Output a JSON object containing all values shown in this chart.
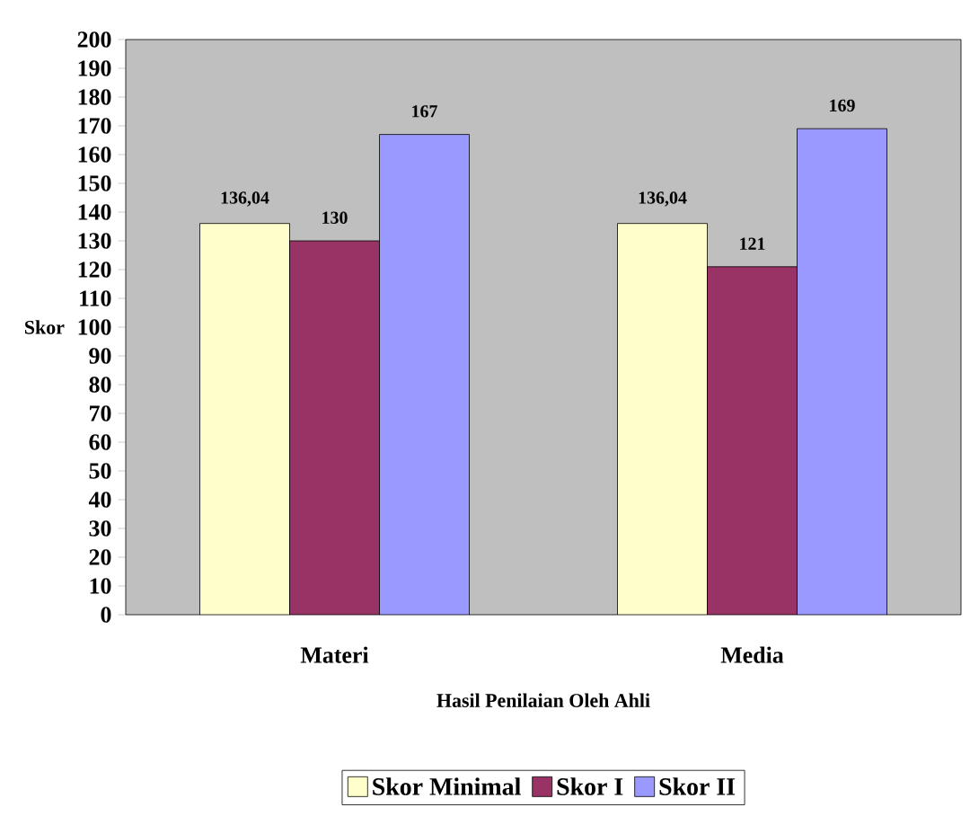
{
  "chart_data": {
    "type": "bar",
    "xlabel": "Hasil Penilaian Oleh Ahli",
    "ylabel": "Skor",
    "categories": [
      "Materi",
      "Media"
    ],
    "series": [
      {
        "name": "Skor Minimal",
        "color": "#ffffcc",
        "values": [
          136.04,
          136.04
        ],
        "value_labels": [
          "136,04",
          "136,04"
        ]
      },
      {
        "name": "Skor I",
        "color": "#993366",
        "values": [
          130,
          121
        ],
        "value_labels": [
          "130",
          "121"
        ]
      },
      {
        "name": "Skor II",
        "color": "#9999ff",
        "values": [
          167,
          169
        ],
        "value_labels": [
          "167",
          "169"
        ]
      }
    ],
    "ylim": [
      0,
      200
    ],
    "yticks": [
      0,
      10,
      20,
      30,
      40,
      50,
      60,
      70,
      80,
      90,
      100,
      110,
      120,
      130,
      140,
      150,
      160,
      170,
      180,
      190,
      200
    ],
    "legend": "bottom"
  }
}
